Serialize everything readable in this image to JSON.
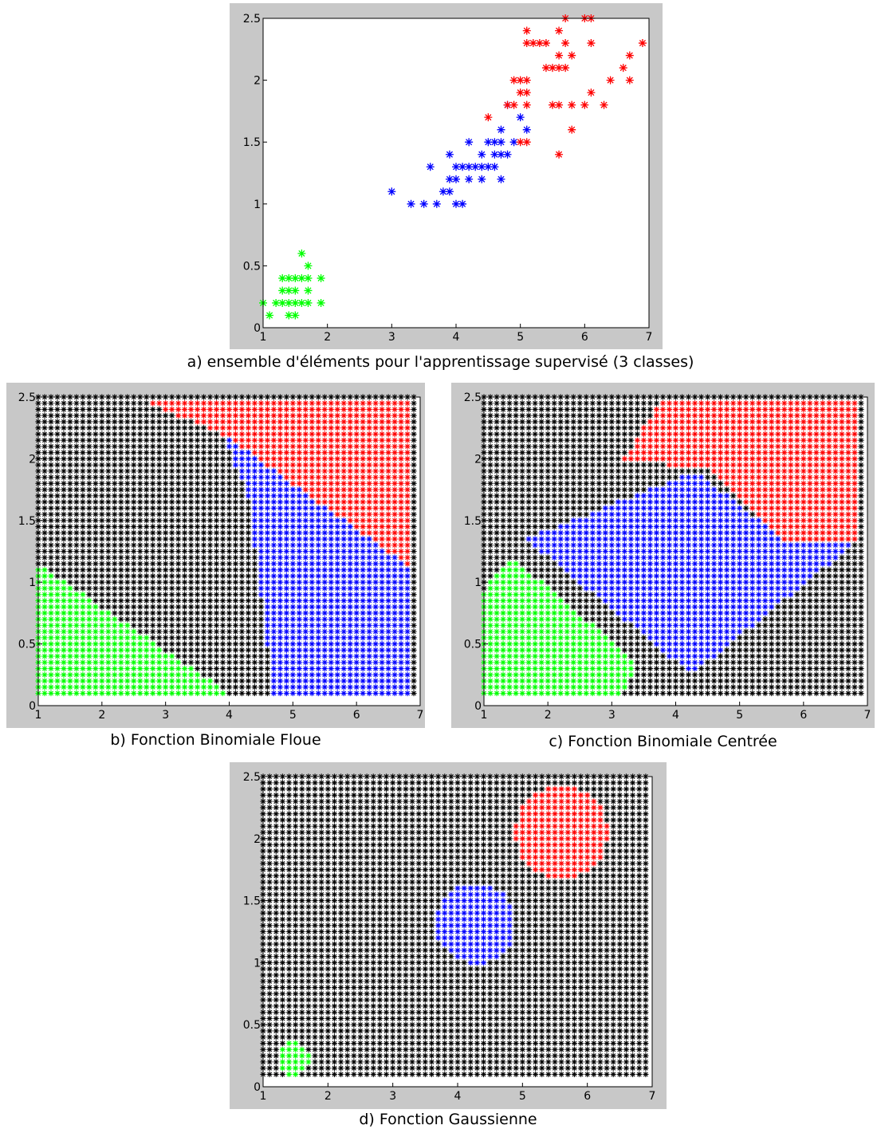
{
  "colors": {
    "frame": "#c8c8c8",
    "axes_bg": "#ffffff",
    "axis": "#000000",
    "setosa": "#00ff00",
    "versicolor": "#0000ff",
    "virginica": "#ff0000",
    "rejected": "#000000"
  },
  "chart_data": [
    {
      "type": "scatter",
      "caption": "a) ensemble d'éléments pour l'apprentissage supervisé (3 classes)",
      "marker": "asterisk",
      "xlim": [
        1,
        7
      ],
      "ylim": [
        0,
        2.5
      ],
      "xticks": [
        "1",
        "2",
        "3",
        "4",
        "5",
        "6",
        "7"
      ],
      "yticks": [
        "0",
        "0.5",
        "1",
        "1.5",
        "2",
        "2.5"
      ],
      "series": [
        {
          "class": "green",
          "color": "#00ff00",
          "points": [
            [
              1,
              0.2
            ],
            [
              1.1,
              0.1
            ],
            [
              1.2,
              0.2
            ],
            [
              1.3,
              0.2
            ],
            [
              1.3,
              0.3
            ],
            [
              1.3,
              0.4
            ],
            [
              1.4,
              0.1
            ],
            [
              1.4,
              0.2
            ],
            [
              1.4,
              0.3
            ],
            [
              1.4,
              0.4
            ],
            [
              1.5,
              0.1
            ],
            [
              1.5,
              0.2
            ],
            [
              1.5,
              0.3
            ],
            [
              1.5,
              0.4
            ],
            [
              1.6,
              0.2
            ],
            [
              1.6,
              0.4
            ],
            [
              1.6,
              0.6
            ],
            [
              1.7,
              0.2
            ],
            [
              1.7,
              0.3
            ],
            [
              1.7,
              0.4
            ],
            [
              1.7,
              0.5
            ],
            [
              1.9,
              0.2
            ],
            [
              1.9,
              0.4
            ]
          ]
        },
        {
          "class": "blue",
          "color": "#0000ff",
          "points": [
            [
              3,
              1.1
            ],
            [
              3.3,
              1
            ],
            [
              3.5,
              1
            ],
            [
              3.6,
              1.3
            ],
            [
              3.7,
              1
            ],
            [
              3.8,
              1.1
            ],
            [
              3.9,
              1.1
            ],
            [
              3.9,
              1.2
            ],
            [
              3.9,
              1.4
            ],
            [
              4,
              1
            ],
            [
              4,
              1.2
            ],
            [
              4,
              1.3
            ],
            [
              4.1,
              1
            ],
            [
              4.1,
              1.3
            ],
            [
              4.2,
              1.2
            ],
            [
              4.2,
              1.3
            ],
            [
              4.2,
              1.5
            ],
            [
              4.3,
              1.3
            ],
            [
              4.4,
              1.2
            ],
            [
              4.4,
              1.3
            ],
            [
              4.4,
              1.4
            ],
            [
              4.5,
              1.3
            ],
            [
              4.5,
              1.5
            ],
            [
              4.6,
              1.3
            ],
            [
              4.6,
              1.4
            ],
            [
              4.6,
              1.5
            ],
            [
              4.7,
              1.2
            ],
            [
              4.7,
              1.4
            ],
            [
              4.7,
              1.5
            ],
            [
              4.7,
              1.6
            ],
            [
              4.8,
              1.4
            ],
            [
              4.8,
              1.8
            ],
            [
              4.9,
              1.5
            ],
            [
              5,
              1.7
            ],
            [
              5.1,
              1.6
            ]
          ]
        },
        {
          "class": "red",
          "color": "#ff0000",
          "points": [
            [
              4.5,
              1.7
            ],
            [
              4.8,
              1.8
            ],
            [
              4.9,
              1.8
            ],
            [
              4.9,
              2
            ],
            [
              5,
              1.5
            ],
            [
              5,
              1.9
            ],
            [
              5,
              2
            ],
            [
              5.1,
              1.5
            ],
            [
              5.1,
              1.8
            ],
            [
              5.1,
              1.9
            ],
            [
              5.1,
              2
            ],
            [
              5.1,
              2.3
            ],
            [
              5.1,
              2.4
            ],
            [
              5.2,
              2.3
            ],
            [
              5.3,
              2.3
            ],
            [
              5.4,
              2.1
            ],
            [
              5.4,
              2.3
            ],
            [
              5.5,
              1.8
            ],
            [
              5.5,
              2.1
            ],
            [
              5.6,
              1.4
            ],
            [
              5.6,
              1.8
            ],
            [
              5.6,
              2.1
            ],
            [
              5.6,
              2.2
            ],
            [
              5.6,
              2.4
            ],
            [
              5.7,
              2.1
            ],
            [
              5.7,
              2.3
            ],
            [
              5.7,
              2.5
            ],
            [
              5.8,
              1.6
            ],
            [
              5.8,
              1.8
            ],
            [
              5.8,
              2.2
            ],
            [
              6,
              1.8
            ],
            [
              6,
              2.5
            ],
            [
              6.1,
              1.9
            ],
            [
              6.1,
              2.3
            ],
            [
              6.1,
              2.5
            ],
            [
              6.3,
              1.8
            ],
            [
              6.4,
              2
            ],
            [
              6.6,
              2.1
            ],
            [
              6.7,
              2
            ],
            [
              6.7,
              2.2
            ],
            [
              6.9,
              2.3
            ]
          ]
        }
      ]
    },
    {
      "type": "heatmap",
      "caption": "b) Fonction Binomiale Floue",
      "xlim": [
        1,
        7
      ],
      "ylim": [
        0,
        2.5
      ],
      "xticks": [
        "1",
        "2",
        "3",
        "4",
        "5",
        "6",
        "7"
      ],
      "yticks": [
        "0",
        "0.5",
        "1",
        "1.5",
        "2",
        "2.5"
      ],
      "grid": {
        "x_start": 1,
        "x_end": 6.9,
        "x_step": 0.1,
        "y_start": 0.1,
        "y_end": 2.5,
        "y_step": 0.05
      },
      "regions": [
        {
          "class": "red",
          "color": "#ff0000",
          "polygon": [
            [
              2.5,
              2.5
            ],
            [
              6.9,
              2.5
            ],
            [
              6.9,
              1.1
            ],
            [
              3.9,
              2.2
            ]
          ]
        },
        {
          "class": "blue",
          "color": "#0000ff",
          "polygon": [
            [
              3.9,
              2.2
            ],
            [
              6.9,
              1.1
            ],
            [
              6.9,
              0.1
            ],
            [
              4.7,
              0.1
            ],
            [
              4.3,
              1.7
            ]
          ]
        },
        {
          "class": "green",
          "color": "#00ff00",
          "polygon": [
            [
              1,
              0.1
            ],
            [
              1,
              1.15
            ],
            [
              4,
              0.1
            ]
          ]
        },
        {
          "class": "black",
          "color": "#000000",
          "note": "remaining cells"
        }
      ]
    },
    {
      "type": "heatmap",
      "caption": "c) Fonction Binomiale Centrée",
      "xlim": [
        1,
        7
      ],
      "ylim": [
        0,
        2.5
      ],
      "xticks": [
        "1",
        "2",
        "3",
        "4",
        "5",
        "6",
        "7"
      ],
      "yticks": [
        "0",
        "0.5",
        "1",
        "1.5",
        "2",
        "2.5"
      ],
      "grid": {
        "x_start": 1,
        "x_end": 6.9,
        "x_step": 0.1,
        "y_start": 0.1,
        "y_end": 2.5,
        "y_step": 0.05
      },
      "regions": [
        {
          "class": "red",
          "color": "#ff0000",
          "polygon": [
            [
              3.8,
              2.5
            ],
            [
              6.9,
              2.5
            ],
            [
              6.9,
              1.35
            ],
            [
              5.7,
              1.35
            ],
            [
              4.6,
              1.9
            ],
            [
              3.2,
              2
            ]
          ]
        },
        {
          "class": "blue",
          "color": "#0000ff",
          "polygon": [
            [
              4.3,
              1.9
            ],
            [
              5.7,
              1.35
            ],
            [
              6.9,
              1.35
            ],
            [
              4.25,
              0.25
            ],
            [
              1.65,
              1.35
            ]
          ]
        },
        {
          "class": "green",
          "color": "#00ff00",
          "polygon": [
            [
              1,
              0.1
            ],
            [
              1,
              0.95
            ],
            [
              1.45,
              1.2
            ],
            [
              3.4,
              0.35
            ],
            [
              3.2,
              0.1
            ]
          ]
        },
        {
          "class": "black",
          "color": "#000000",
          "note": "remaining cells"
        }
      ]
    },
    {
      "type": "heatmap",
      "caption": "d) Fonction Gaussienne",
      "xlim": [
        1,
        7
      ],
      "ylim": [
        0,
        2.5
      ],
      "xticks": [
        "1",
        "2",
        "3",
        "4",
        "5",
        "6",
        "7"
      ],
      "yticks": [
        "0",
        "0.5",
        "1",
        "1.5",
        "2",
        "2.5"
      ],
      "grid": {
        "x_start": 1,
        "x_end": 6.9,
        "x_step": 0.1,
        "y_start": 0.1,
        "y_end": 2.5,
        "y_step": 0.05
      },
      "regions": [
        {
          "class": "red",
          "color": "#ff0000",
          "ellipse": {
            "cx": 5.6,
            "cy": 2.05,
            "rx": 0.72,
            "ry": 0.38
          }
        },
        {
          "class": "blue",
          "color": "#0000ff",
          "ellipse": {
            "cx": 4.27,
            "cy": 1.32,
            "rx": 0.62,
            "ry": 0.33
          }
        },
        {
          "class": "green",
          "color": "#00ff00",
          "ellipse": {
            "cx": 1.47,
            "cy": 0.23,
            "rx": 0.25,
            "ry": 0.14
          }
        },
        {
          "class": "black",
          "color": "#000000",
          "note": "remaining cells"
        }
      ]
    }
  ]
}
